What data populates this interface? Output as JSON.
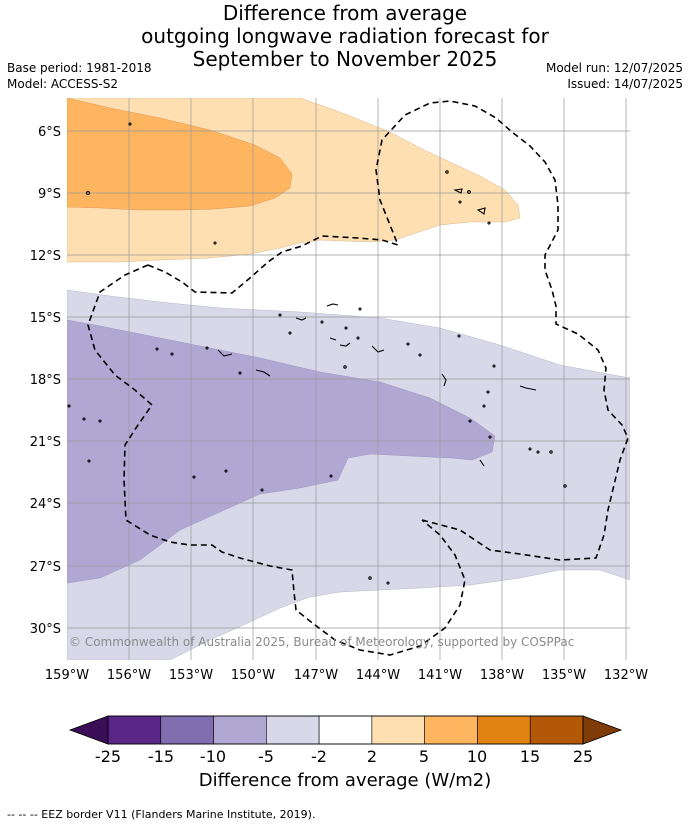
{
  "title_lines": [
    "Difference from average",
    "outgoing longwave radiation forecast for",
    "September to November 2025"
  ],
  "meta_left": [
    "Base period: 1981-2018",
    "Model: ACCESS-S2"
  ],
  "meta_right": [
    "Model run: 12/07/2025",
    "Issued: 14/07/2025"
  ],
  "copyright": "© Commonwealth of Australia 2025, Bureau of Meteorology, supported by COSPPac",
  "lat_labels": [
    "6°S",
    "9°S",
    "12°S",
    "15°S",
    "18°S",
    "21°S",
    "24°S",
    "27°S",
    "30°S"
  ],
  "lon_labels": [
    "159°W",
    "156°W",
    "153°W",
    "150°W",
    "147°W",
    "144°W",
    "141°W",
    "138°W",
    "135°W",
    "132°W"
  ],
  "colorbar": {
    "labels": [
      "-25",
      "-15",
      "-10",
      "-5",
      "-2",
      "2",
      "5",
      "10",
      "15",
      "25"
    ],
    "colors": [
      "#5a2688",
      "#7f6fae",
      "#b0a8d3",
      "#d8d8e9",
      "#ffffff",
      "#fedfb1",
      "#fdb55f",
      "#e08214",
      "#b35806"
    ],
    "under_color": "#3a0f57",
    "over_color": "#7f3b08",
    "title": "Difference from average (W/m2)"
  },
  "footnote": "--  --  -- EEZ border V11 (Flanders Marine Institute, 2019)."
}
